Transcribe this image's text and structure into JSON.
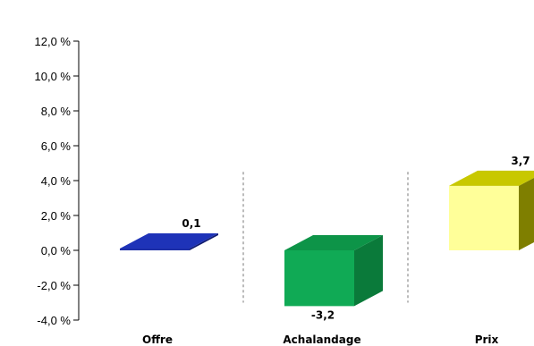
{
  "chart_data": {
    "type": "bar",
    "categories": [
      "Offre",
      "Achalandage",
      "Prix"
    ],
    "values": [
      0.1,
      -3.2,
      3.7
    ],
    "value_labels": [
      "0,1",
      "-3,2",
      "3,7"
    ],
    "colors": {
      "Offre": {
        "front": "#1d2fa8",
        "side": "#0f1a6e",
        "top": "#1e33b8"
      },
      "Achalandage": {
        "front": "#10aa55",
        "side": "#0a7a3a",
        "top": "#0d9448"
      },
      "Prix": {
        "front": "#ffff99",
        "side": "#7f7f00",
        "top": "#c8c800"
      }
    },
    "ylim": [
      -4,
      12
    ],
    "yticks": [
      12,
      10,
      8,
      6,
      4,
      2,
      0,
      -2,
      -4
    ],
    "ytick_labels": [
      "12,0 %",
      "10,0 %",
      "8,0 %",
      "6,0 %",
      "4,0 %",
      "2,0 %",
      "0,0 %",
      "-2,0 %",
      "-4,0 %"
    ],
    "title": "",
    "xlabel": "",
    "ylabel": "",
    "grid": false,
    "category_separators": true
  }
}
